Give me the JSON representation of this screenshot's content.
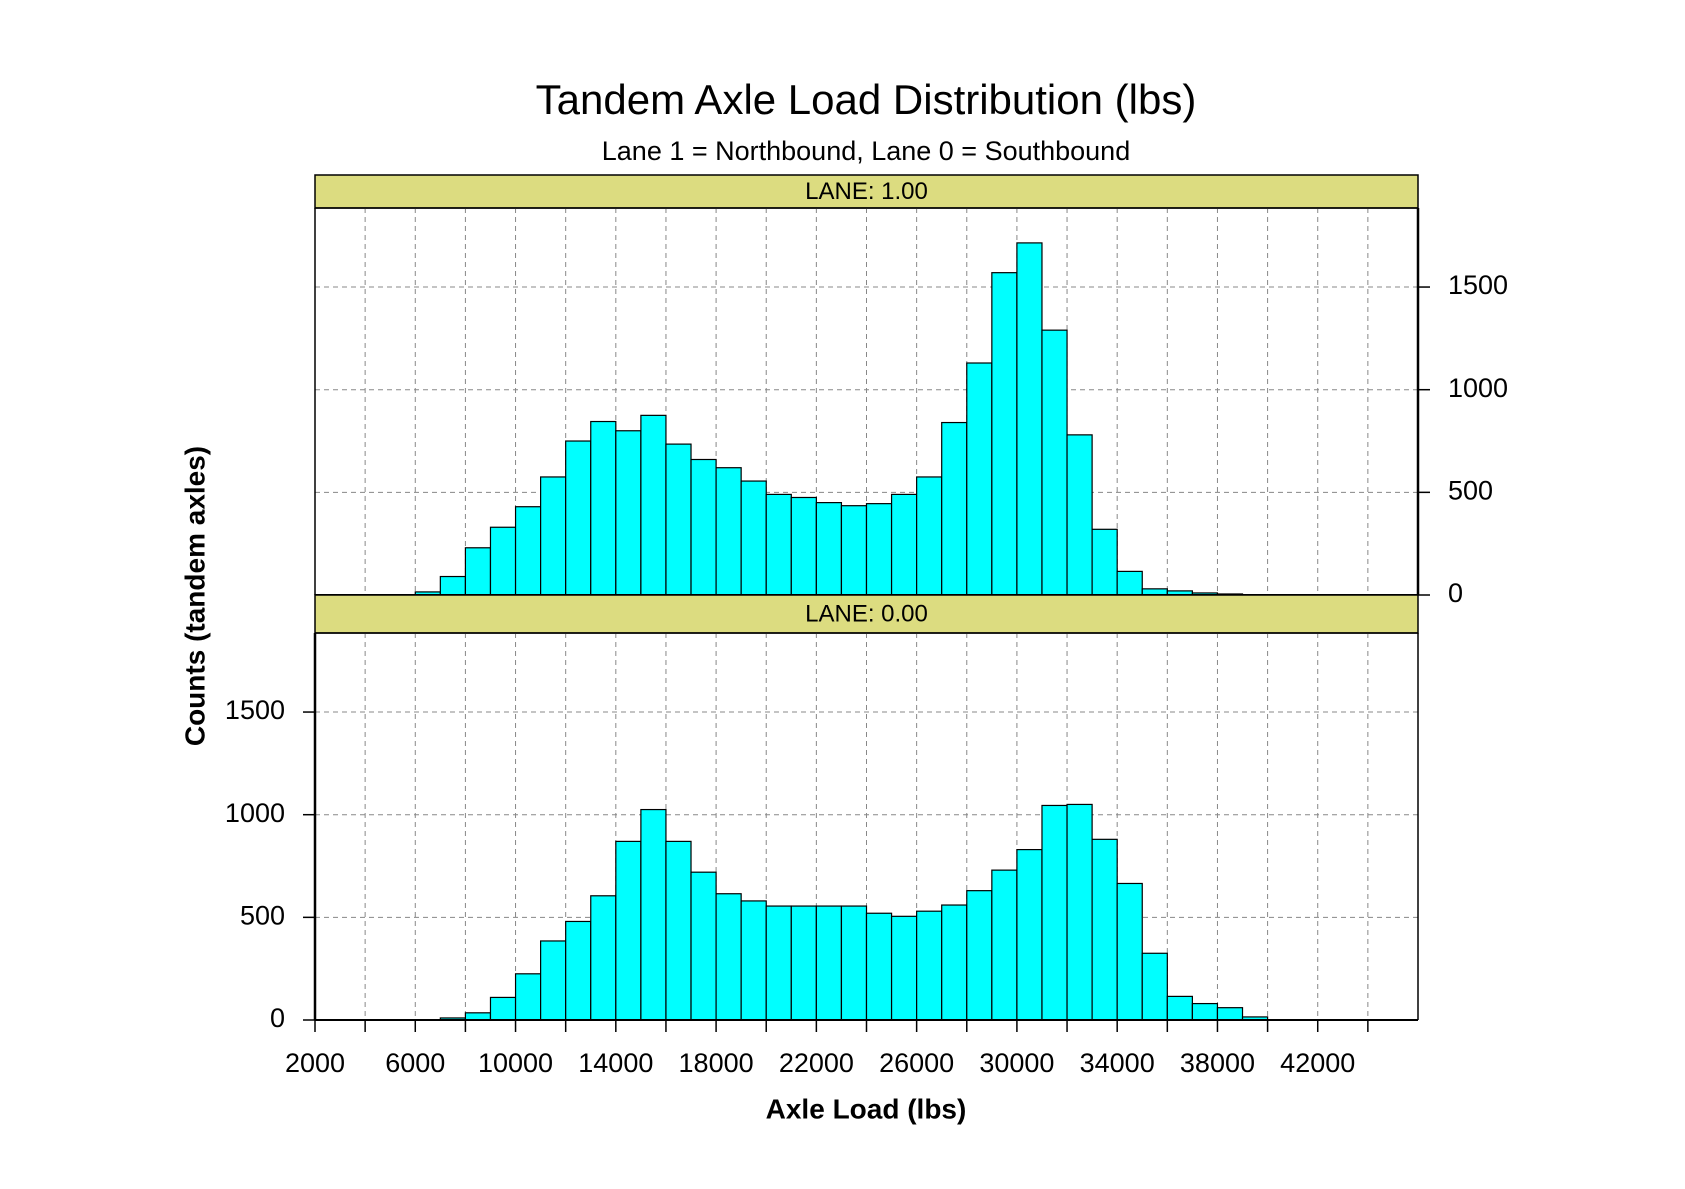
{
  "figure": {
    "title": "Tandem Axle Load Distribution (lbs)",
    "subtitle": "Lane 1 = Northbound, Lane 0 = Southbound",
    "xlabel": "Axle Load (lbs)",
    "ylabel": "Counts (tandem axles)"
  },
  "chart_data": [
    {
      "type": "histogram",
      "title": "LANE: 1.00",
      "color": "#00ffff",
      "bins": [
        6000,
        7000,
        8000,
        9000,
        10000,
        11000,
        12000,
        13000,
        14000,
        15000,
        16000,
        17000,
        18000,
        19000,
        20000,
        21000,
        22000,
        23000,
        24000,
        25000,
        26000,
        27000,
        28000,
        29000,
        30000,
        31000,
        32000,
        33000,
        34000,
        35000,
        36000,
        37000,
        38000,
        39000,
        40000
      ],
      "values": [
        15,
        90,
        230,
        330,
        430,
        575,
        750,
        845,
        800,
        875,
        735,
        660,
        620,
        555,
        490,
        475,
        450,
        435,
        445,
        490,
        575,
        840,
        1130,
        1570,
        1715,
        1290,
        780,
        320,
        115,
        30,
        20,
        10,
        5,
        0
      ],
      "xlim": [
        2000,
        46000
      ],
      "ylim": [
        0,
        1885
      ],
      "yticks": [
        0,
        500,
        1000,
        1500
      ],
      "xticks": [
        2000,
        6000,
        10000,
        14000,
        18000,
        22000,
        26000,
        30000,
        34000,
        38000,
        42000
      ],
      "xminor_ticks": [
        4000,
        8000,
        12000,
        16000,
        20000,
        24000,
        28000,
        32000,
        36000,
        40000,
        44000
      ],
      "ytick_side": "right",
      "xtick_labels": false,
      "grid": true
    },
    {
      "type": "histogram",
      "title": "LANE: 0.00",
      "color": "#00ffff",
      "bins": [
        6000,
        7000,
        8000,
        9000,
        10000,
        11000,
        12000,
        13000,
        14000,
        15000,
        16000,
        17000,
        18000,
        19000,
        20000,
        21000,
        22000,
        23000,
        24000,
        25000,
        26000,
        27000,
        28000,
        29000,
        30000,
        31000,
        32000,
        33000,
        34000,
        35000,
        36000,
        37000,
        38000,
        39000,
        40000
      ],
      "values": [
        0,
        10,
        35,
        110,
        225,
        385,
        480,
        605,
        870,
        1025,
        870,
        720,
        615,
        580,
        555,
        555,
        555,
        555,
        520,
        505,
        530,
        560,
        630,
        730,
        830,
        1045,
        1050,
        880,
        665,
        325,
        115,
        80,
        60,
        15
      ],
      "xlim": [
        2000,
        46000
      ],
      "ylim": [
        0,
        1885
      ],
      "yticks": [
        0,
        500,
        1000,
        1500
      ],
      "xticks": [
        2000,
        6000,
        10000,
        14000,
        18000,
        22000,
        26000,
        30000,
        34000,
        38000,
        42000
      ],
      "xminor_ticks": [
        4000,
        8000,
        12000,
        16000,
        20000,
        24000,
        28000,
        32000,
        36000,
        40000,
        44000
      ],
      "ytick_side": "left",
      "xtick_labels": true,
      "grid": true
    }
  ]
}
